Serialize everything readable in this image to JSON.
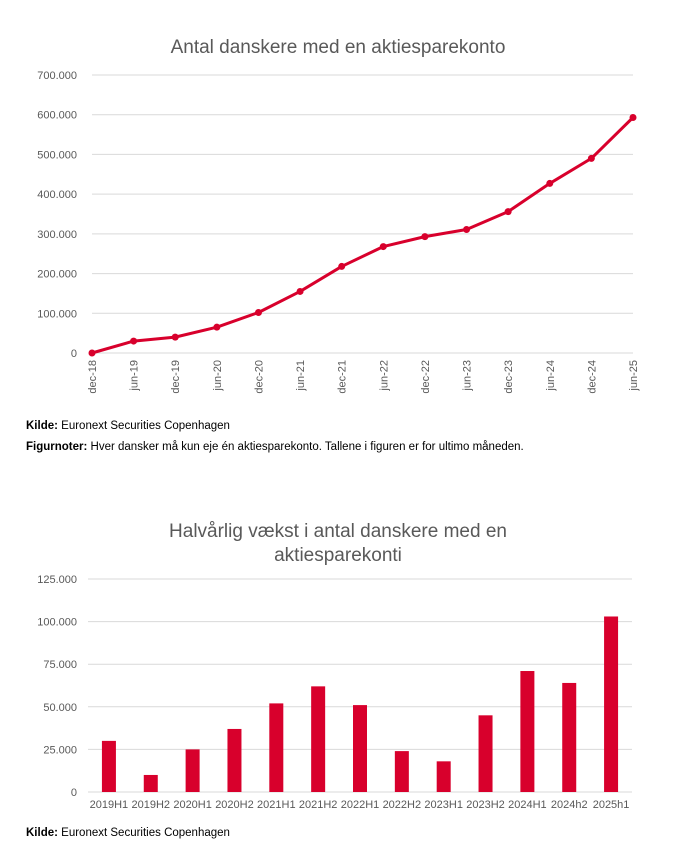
{
  "notes": {
    "source1_label": "Kilde:",
    "source1_text": "Euronext Securities Copenhagen",
    "fignote_label": "Figurnoter:",
    "fignote_text": "Hver dansker må kun eje én aktiesparekonto. Tallene i figuren er for ultimo måneden.",
    "source2_label": "Kilde:",
    "source2_text": "Euronext Securities Copenhagen"
  },
  "colors": {
    "accent": "#d8002c",
    "grid": "#d9d9d9",
    "text": "#595959"
  },
  "chart_data": [
    {
      "type": "line",
      "title": "Antal danskere med en aktiesparekonto",
      "categories": [
        "dec-18",
        "jun-19",
        "dec-19",
        "jun-20",
        "dec-20",
        "jun-21",
        "dec-21",
        "jun-22",
        "dec-22",
        "jun-23",
        "dec-23",
        "jun-24",
        "dec-24",
        "jun-25"
      ],
      "values": [
        0,
        30000,
        40000,
        65000,
        102000,
        155000,
        218000,
        268000,
        293000,
        311000,
        356000,
        427000,
        490000,
        593000
      ],
      "yticks": [
        "0",
        "100.000",
        "200.000",
        "300.000",
        "400.000",
        "500.000",
        "600.000",
        "700.000"
      ],
      "ylim": [
        0,
        700000
      ],
      "grid": true,
      "xlabel": "",
      "ylabel": ""
    },
    {
      "type": "bar",
      "title_lines": [
        "Halvårlig vækst i antal danskere med en",
        "aktiesparekonti"
      ],
      "categories": [
        "2019H1",
        "2019H2",
        "2020H1",
        "2020H2",
        "2021H1",
        "2021H2",
        "2022H1",
        "2022H2",
        "2023H1",
        "2023H2",
        "2024H1",
        "2024h2",
        "2025h1"
      ],
      "values": [
        30000,
        10000,
        25000,
        37000,
        52000,
        62000,
        51000,
        24000,
        18000,
        45000,
        71000,
        64000,
        103000
      ],
      "yticks": [
        "0",
        "25.000",
        "50.000",
        "75.000",
        "100.000",
        "125.000"
      ],
      "ylim": [
        0,
        125000
      ],
      "grid": true,
      "xlabel": "",
      "ylabel": ""
    }
  ]
}
